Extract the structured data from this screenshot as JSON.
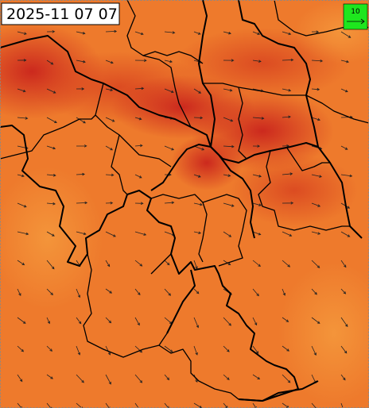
{
  "timestamp": "2025-11 07 07",
  "wind_legend": {
    "label": "10"
  }
}
